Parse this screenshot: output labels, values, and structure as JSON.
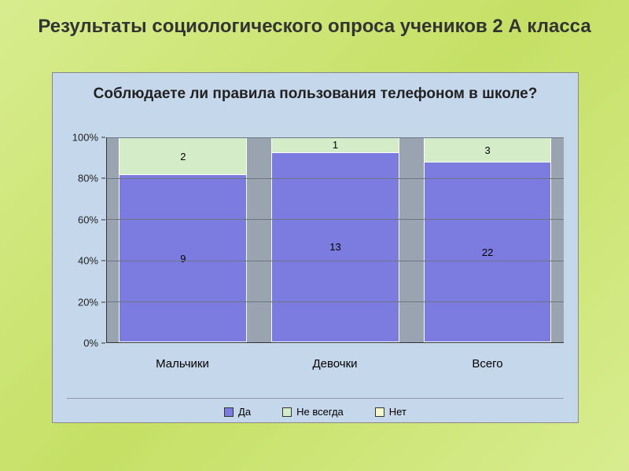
{
  "slide": {
    "title": "Результаты социологического опроса учеников 2 А класса",
    "title_fontsize": 24,
    "background_gradient": [
      "#d8ec8f",
      "#c5e065",
      "#d8ec8f"
    ]
  },
  "chart": {
    "type": "100%_stacked_bar",
    "title": "Соблюдаете ли правила пользования телефоном в школе?",
    "title_fontsize": 19,
    "container_background": "#c5d7ea",
    "plot_background": "#9aa4b0",
    "grid_color": "#6d7680",
    "axis_color": "#333333",
    "label_fontsize": 15,
    "tick_fontsize": 13,
    "ylim": [
      0,
      100
    ],
    "ytick_step": 20,
    "yticks": [
      "0%",
      "20%",
      "40%",
      "60%",
      "80%",
      "100%"
    ],
    "categories": [
      "Мальчики",
      "Девочки",
      "Всего"
    ],
    "series": [
      {
        "name": "Да",
        "color": "#7b7be0",
        "values": [
          9,
          13,
          22
        ]
      },
      {
        "name": "Не всегда",
        "color": "#d4edc8",
        "values": [
          2,
          1,
          3
        ]
      },
      {
        "name": "Нет",
        "color": "#f4f9cc",
        "values": [
          0,
          0,
          0
        ]
      }
    ],
    "data_label_color": "#000000",
    "bar_border_color": "#ffffff"
  }
}
